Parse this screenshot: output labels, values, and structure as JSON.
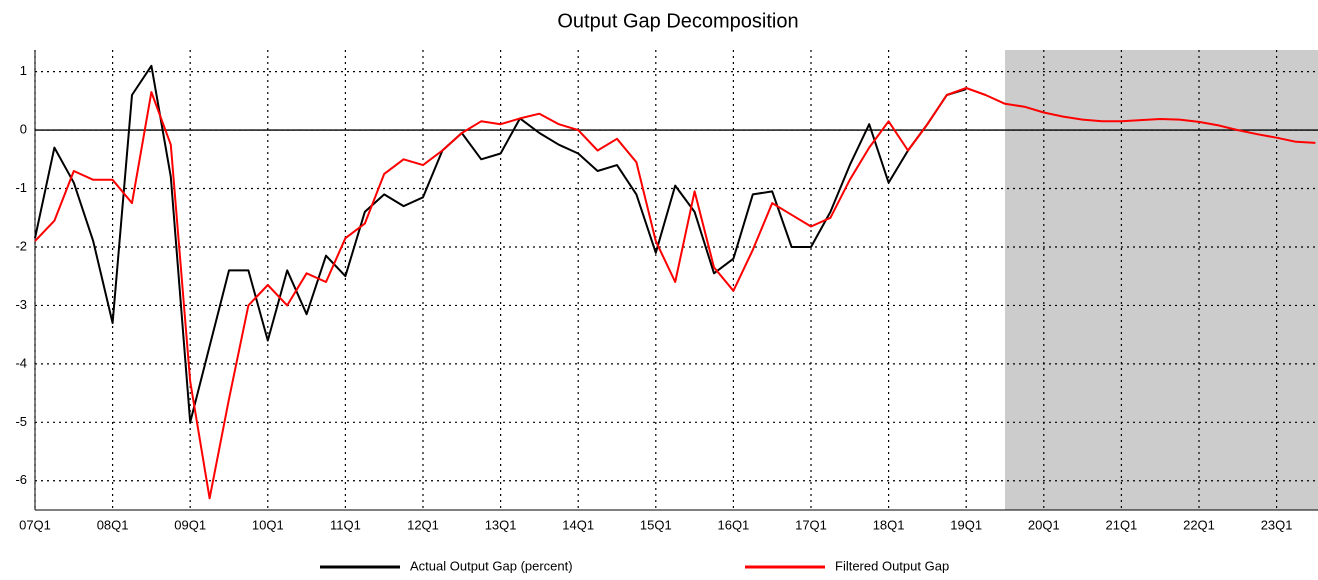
{
  "chart_data": {
    "type": "line",
    "title": "Output Gap Decomposition",
    "categories": [
      "07Q1",
      null,
      null,
      null,
      "08Q1",
      null,
      null,
      null,
      "09Q1",
      null,
      null,
      null,
      "10Q1",
      null,
      null,
      null,
      "11Q1",
      null,
      null,
      null,
      "12Q1",
      null,
      null,
      null,
      "13Q1",
      null,
      null,
      null,
      "14Q1",
      null,
      null,
      null,
      "15Q1",
      null,
      null,
      null,
      "16Q1",
      null,
      null,
      null,
      "17Q1",
      null,
      null,
      null,
      "18Q1",
      null,
      null,
      null,
      "19Q1",
      null,
      null,
      null,
      "20Q1",
      null,
      null,
      null,
      "21Q1",
      null,
      null,
      null,
      "22Q1",
      null,
      null,
      null,
      "23Q1",
      null,
      null
    ],
    "series": [
      {
        "name": "Actual Output Gap (percent)",
        "color": "#000000",
        "values": [
          -1.85,
          -0.3,
          -0.9,
          -1.9,
          -3.3,
          0.6,
          1.1,
          -0.8,
          -5.0,
          -3.7,
          -2.4,
          -2.4,
          -3.6,
          -2.4,
          -3.15,
          -2.15,
          -2.5,
          -1.4,
          -1.1,
          -1.3,
          -1.15,
          -0.35,
          -0.05,
          -0.5,
          -0.4,
          0.2,
          -0.05,
          -0.25,
          -0.4,
          -0.7,
          -0.6,
          -1.1,
          -2.1,
          -0.95,
          -1.4,
          -2.45,
          -2.2,
          -1.1,
          -1.05,
          -2.0,
          -2.0,
          -1.4,
          -0.6,
          0.1,
          -0.9,
          -0.35,
          0.1,
          0.6,
          0.7,
          null,
          null,
          null,
          null,
          null,
          null,
          null,
          null,
          null,
          null,
          null,
          null,
          null,
          null,
          null,
          null,
          null,
          null
        ]
      },
      {
        "name": "Filtered Output Gap",
        "color": "#ff0000",
        "values": [
          -1.9,
          -1.55,
          -0.7,
          -0.85,
          -0.85,
          -1.25,
          0.65,
          -0.25,
          -4.3,
          -6.3,
          -4.6,
          -3.0,
          -2.65,
          -3.0,
          -2.45,
          -2.6,
          -1.85,
          -1.6,
          -0.75,
          -0.5,
          -0.6,
          -0.35,
          -0.05,
          0.15,
          0.1,
          0.2,
          0.28,
          0.1,
          0.0,
          -0.35,
          -0.15,
          -0.55,
          -1.9,
          -2.6,
          -1.05,
          -2.35,
          -2.75,
          -2.05,
          -1.25,
          -1.45,
          -1.65,
          -1.5,
          -0.85,
          -0.3,
          0.15,
          -0.35,
          0.1,
          0.6,
          0.72,
          0.6,
          0.45,
          0.4,
          0.3,
          0.23,
          0.18,
          0.15,
          0.15,
          0.17,
          0.19,
          0.18,
          0.14,
          0.08,
          0.0,
          -0.07,
          -0.13,
          -0.2,
          -0.22
        ]
      }
    ],
    "ylim": [
      -6.5,
      1.37
    ],
    "yticks": [
      1,
      0,
      -1,
      -2,
      -3,
      -4,
      -5,
      -6
    ],
    "grid": true,
    "zero_line": true,
    "shaded_from_index": 50,
    "shade_color": "#cccccc",
    "legend": "bottom"
  }
}
